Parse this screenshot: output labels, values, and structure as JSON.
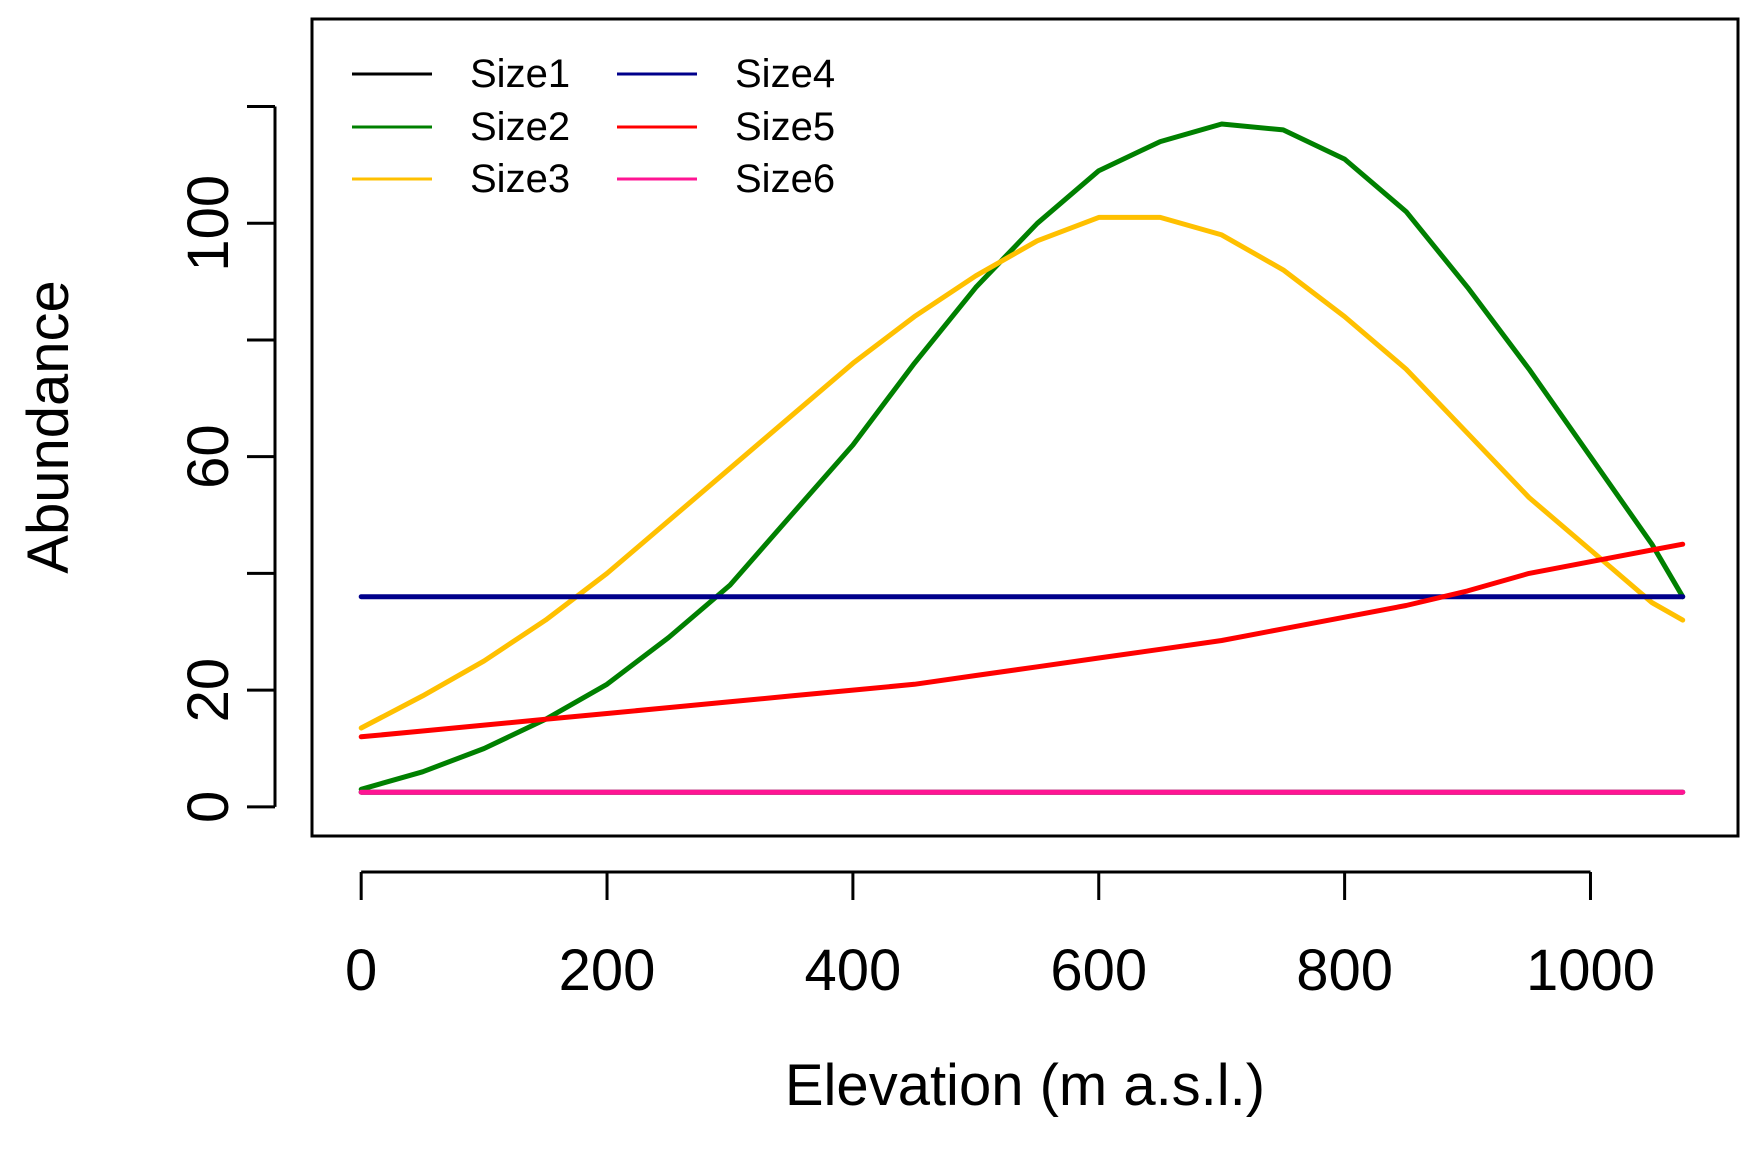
{
  "chart_data": {
    "type": "line",
    "title": "",
    "xlabel": "Elevation (m a.s.l.)",
    "ylabel": "Abundance",
    "xlim": [
      -40,
      1120
    ],
    "ylim": [
      -5,
      135
    ],
    "xticks": [
      0,
      200,
      400,
      600,
      800,
      1000
    ],
    "xtick_labels": [
      "0",
      "200",
      "400",
      "600",
      "800",
      "1000"
    ],
    "yticks": [
      0,
      20,
      40,
      60,
      80,
      100,
      120
    ],
    "ytick_labels": [
      "0",
      "20",
      "",
      "60",
      "",
      "100",
      ""
    ],
    "grid": false,
    "legend_position": "top-left",
    "x": [
      0,
      50,
      100,
      150,
      200,
      250,
      300,
      350,
      400,
      450,
      500,
      550,
      600,
      650,
      700,
      750,
      800,
      850,
      900,
      950,
      1000,
      1050,
      1075
    ],
    "series": [
      {
        "name": "Size1",
        "color": "#000000",
        "values": [
          2.5,
          2.5,
          2.5,
          2.5,
          2.5,
          2.5,
          2.5,
          2.5,
          2.5,
          2.5,
          2.5,
          2.5,
          2.5,
          2.5,
          2.5,
          2.5,
          2.5,
          2.5,
          2.5,
          2.5,
          2.5,
          2.5,
          2.5
        ]
      },
      {
        "name": "Size2",
        "color": "#008000",
        "values": [
          3,
          6,
          10,
          15,
          21,
          29,
          38,
          50,
          62,
          76,
          89,
          100,
          109,
          114,
          117,
          116,
          111,
          102,
          89,
          75,
          60,
          45,
          36
        ]
      },
      {
        "name": "Size3",
        "color": "#FFC000",
        "values": [
          13.5,
          19,
          25,
          32,
          40,
          49,
          58,
          67,
          76,
          84,
          91,
          97,
          101,
          101,
          98,
          92,
          84,
          75,
          64,
          53,
          44,
          35,
          32
        ]
      },
      {
        "name": "Size4",
        "color": "#00008B",
        "values": [
          36,
          36,
          36,
          36,
          36,
          36,
          36,
          36,
          36,
          36,
          36,
          36,
          36,
          36,
          36,
          36,
          36,
          36,
          36,
          36,
          36,
          36,
          36
        ]
      },
      {
        "name": "Size5",
        "color": "#FF0000",
        "values": [
          12,
          13,
          14,
          15,
          16,
          17,
          18,
          19,
          20,
          21,
          22.5,
          24,
          25.5,
          27,
          28.5,
          30.5,
          32.5,
          34.5,
          37,
          40,
          42,
          44,
          45
        ]
      },
      {
        "name": "Size6",
        "color": "#FF1493",
        "values": [
          2.5,
          2.5,
          2.5,
          2.5,
          2.5,
          2.5,
          2.5,
          2.5,
          2.5,
          2.5,
          2.5,
          2.5,
          2.5,
          2.5,
          2.5,
          2.5,
          2.5,
          2.5,
          2.5,
          2.5,
          2.5,
          2.5,
          2.5
        ]
      }
    ]
  }
}
